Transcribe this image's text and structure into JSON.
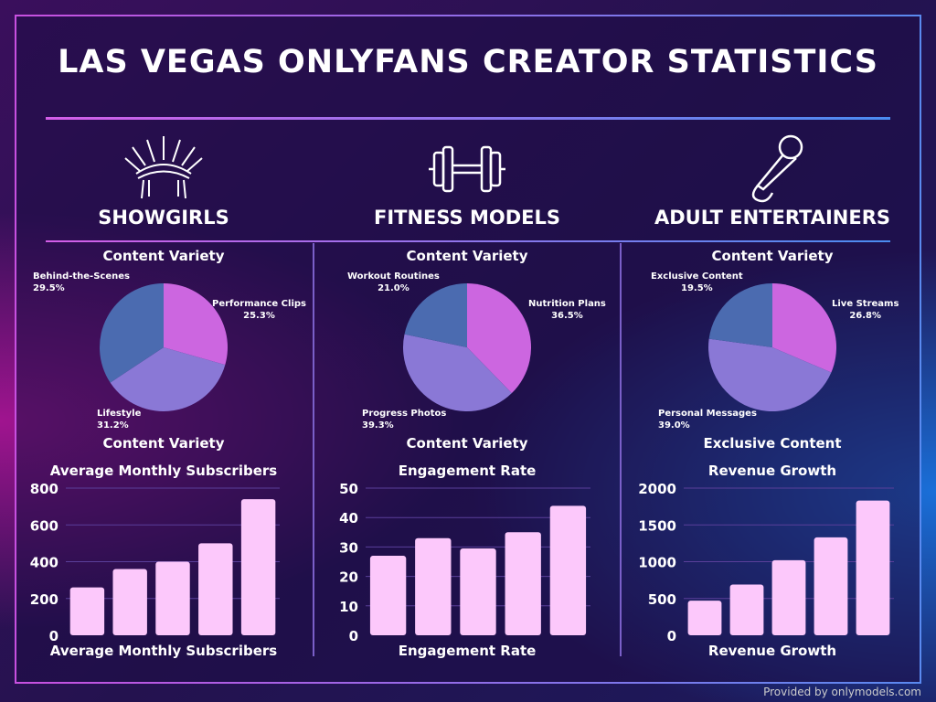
{
  "title": "LAS VEGAS ONLYFANS CREATOR STATISTICS",
  "footer": "Provided by onlymodels.com",
  "colors": {
    "pink": "#cc66e0",
    "purple": "#8a78d6",
    "blue": "#4b6bb0",
    "bar": "#fcc8fb"
  },
  "sections": [
    {
      "heading": "SHOWGIRLS",
      "icon": "headdress-icon",
      "pie_title": "Content Variety",
      "pie_caption": "Content Variety",
      "bar_title": "Average Monthly Subscribers"
    },
    {
      "heading": "FITNESS MODELS",
      "icon": "dumbbell-icon",
      "pie_title": "Content Variety",
      "pie_caption": "Content Variety",
      "bar_title": "Engagement Rate"
    },
    {
      "heading": "ADULT ENTERTAINERS",
      "icon": "microphone-icon",
      "pie_title": "Content Variety",
      "pie_caption": "Exclusive Content",
      "bar_title": "Revenue Growth"
    }
  ],
  "chart_data": [
    {
      "type": "pie",
      "title": "Content Variety",
      "labels": [
        "Performance Clips",
        "Lifestyle",
        "Behind-the-Scenes"
      ],
      "values": [
        25.3,
        31.2,
        29.5
      ],
      "value_labels": [
        "25.3%",
        "31.2%",
        "29.5%"
      ]
    },
    {
      "type": "pie",
      "title": "Content Variety",
      "labels": [
        "Nutrition Plans",
        "Progress Photos",
        "Workout Routines"
      ],
      "values": [
        36.5,
        39.3,
        21.0
      ],
      "value_labels": [
        "36.5%",
        "39.3%",
        "21.0%"
      ]
    },
    {
      "type": "pie",
      "title": "Content Variety",
      "labels": [
        "Live Streams",
        "Personal Messages",
        "Exclusive Content"
      ],
      "values": [
        26.8,
        39.0,
        19.5
      ],
      "value_labels": [
        "26.8%",
        "39.0%",
        "19.5%"
      ]
    },
    {
      "type": "bar",
      "title": "Average Monthly Subscribers",
      "xlabel": "Average Monthly Subscribers",
      "values": [
        260,
        360,
        400,
        500,
        740
      ],
      "ylim": [
        0,
        800
      ],
      "yticks": [
        "0",
        "200",
        "400",
        "600",
        "800"
      ]
    },
    {
      "type": "bar",
      "title": "Engagement Rate",
      "xlabel": "Engagement Rate",
      "values": [
        27,
        33,
        29.5,
        35,
        44
      ],
      "ylim": [
        0,
        50
      ],
      "yticks": [
        "0",
        "10",
        "20",
        "30",
        "40",
        "50"
      ]
    },
    {
      "type": "bar",
      "title": "Revenue Growth",
      "xlabel": "Revenue Growth",
      "values": [
        470,
        690,
        1020,
        1330,
        1830
      ],
      "ylim": [
        0,
        2000
      ],
      "yticks": [
        "0",
        "500",
        "1000",
        "1500",
        "2000"
      ]
    }
  ]
}
